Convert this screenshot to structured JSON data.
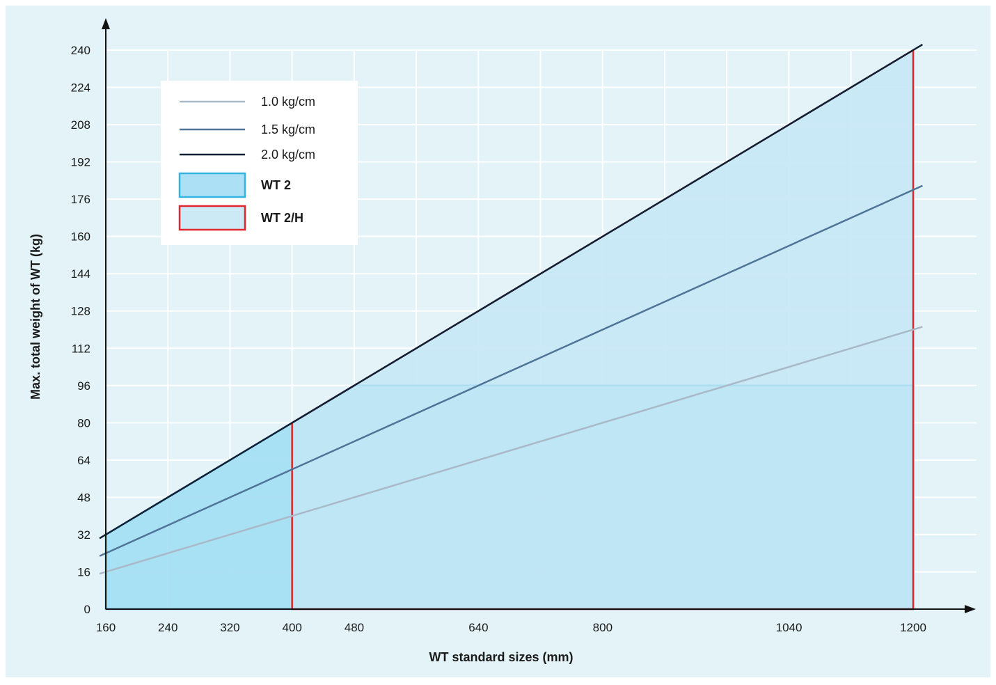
{
  "chart_data": {
    "type": "line",
    "xlabel": "WT standard sizes (mm)",
    "ylabel": "Max. total weight of WT (kg)",
    "x_ticks": [
      160,
      240,
      320,
      400,
      480,
      640,
      800,
      1040,
      1200
    ],
    "y_ticks": [
      0,
      16,
      32,
      48,
      64,
      80,
      96,
      112,
      128,
      144,
      160,
      176,
      192,
      208,
      224,
      240
    ],
    "xlim": [
      160,
      1200
    ],
    "ylim": [
      0,
      240
    ],
    "grid": true,
    "legend_position": "top-left",
    "series": [
      {
        "name": "1.0 kg/cm",
        "kind": "line",
        "color": "#a9b9c8",
        "x": [
          160,
          1200
        ],
        "y": [
          16,
          120
        ]
      },
      {
        "name": "1.5 kg/cm",
        "kind": "line",
        "color": "#4f7497",
        "x": [
          160,
          1200
        ],
        "y": [
          24,
          180
        ]
      },
      {
        "name": "2.0 kg/cm",
        "kind": "line",
        "color": "#0f2035",
        "x": [
          160,
          1200
        ],
        "y": [
          32,
          240
        ]
      },
      {
        "name": "WT 2",
        "kind": "area",
        "fill": "#9edcf3",
        "stroke": "#34b4e2",
        "x": [
          160,
          160,
          480,
          1200,
          1200
        ],
        "y": [
          0,
          32,
          96,
          96,
          0
        ]
      },
      {
        "name": "WT 2/H",
        "kind": "area",
        "fill": "#c3e6f5",
        "stroke": "#e1262d",
        "x": [
          400,
          400,
          1200,
          1200
        ],
        "y": [
          0,
          80,
          240,
          0
        ]
      }
    ]
  },
  "colors": {
    "background": "#e3f3f7",
    "plot_background": "#e3f3f7",
    "grid": "#ffffff",
    "axis": "#111111"
  }
}
